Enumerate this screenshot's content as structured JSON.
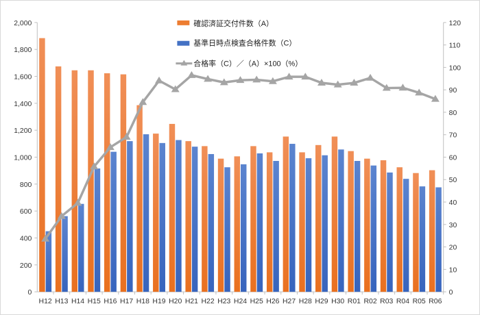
{
  "chart_data": {
    "type": "bar",
    "title": "",
    "categories": [
      "H12",
      "H13",
      "H14",
      "H15",
      "H16",
      "H17",
      "H18",
      "H19",
      "H20",
      "H21",
      "H22",
      "H23",
      "H24",
      "H25",
      "H26",
      "H27",
      "H28",
      "H29",
      "H30",
      "R01",
      "R02",
      "R03",
      "R04",
      "R05",
      "R06"
    ],
    "series": [
      {
        "name": "確認済証交付件数（A）",
        "type": "bar",
        "axis": "left",
        "color": "#ed7d31",
        "values": [
          1884,
          1674,
          1645,
          1645,
          1623,
          1615,
          1386,
          1175,
          1247,
          1119,
          1082,
          989,
          1006,
          1082,
          1036,
          1153,
          1036,
          1090,
          1153,
          1045,
          989,
          977,
          925,
          882,
          903
        ]
      },
      {
        "name": "基準日時点検査合格件数（C）",
        "type": "bar",
        "axis": "left",
        "color": "#4472c4",
        "values": [
          450,
          562,
          653,
          916,
          1040,
          1119,
          1170,
          1105,
          1127,
          1078,
          1023,
          925,
          947,
          1028,
          972,
          1099,
          992,
          1014,
          1057,
          972,
          938,
          886,
          839,
          783,
          776
        ]
      },
      {
        "name": "合格率（C）／（A）×100（%）",
        "type": "line",
        "axis": "right",
        "color": "#a5a5a5",
        "values": [
          23.6,
          33.7,
          39.6,
          55.8,
          64.4,
          69.0,
          84.5,
          94.1,
          90.2,
          96.5,
          94.8,
          93.3,
          94.3,
          94.5,
          93.8,
          95.8,
          95.8,
          93.1,
          92.3,
          93.1,
          95.3,
          90.8,
          90.9,
          88.7,
          85.9
        ]
      }
    ],
    "ylim": [
      0,
      2000
    ],
    "y2lim": [
      0,
      120
    ],
    "yticks": [
      "0",
      "200",
      "400",
      "600",
      "800",
      "1,000",
      "1,200",
      "1,400",
      "1,600",
      "1,800",
      "2,000"
    ],
    "y2ticks": [
      "0",
      "10",
      "20",
      "30",
      "40",
      "50",
      "60",
      "70",
      "80",
      "90",
      "100",
      "110",
      "120"
    ],
    "xlabel": "",
    "ylabel": "",
    "y2label": "",
    "grid": false,
    "legend": "top-center"
  }
}
